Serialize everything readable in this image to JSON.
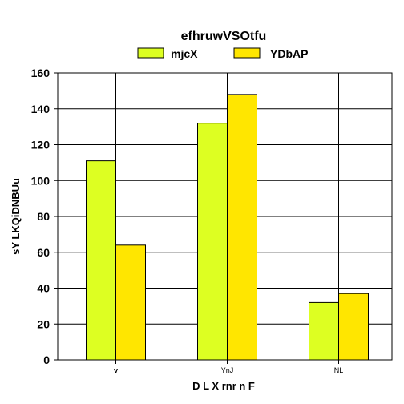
{
  "chart_data": {
    "type": "bar",
    "title": "efhruwVSOtfu",
    "xlabel": "D L X rnr n F",
    "ylabel": "sY LKQiDNBUu",
    "categories": [
      "v",
      "YnJ",
      "NL"
    ],
    "series": [
      {
        "name": "mjcX",
        "values": [
          111,
          132,
          32
        ],
        "color": "#ddff22"
      },
      {
        "name": "YDbAP",
        "values": [
          64,
          148,
          37
        ],
        "color": "#ffe600"
      }
    ],
    "ylim": [
      0,
      160
    ],
    "yticks": [
      "0",
      "20",
      "40",
      "60",
      "80",
      "100",
      "120",
      "140",
      "160"
    ],
    "grid": true,
    "legend": "top"
  }
}
